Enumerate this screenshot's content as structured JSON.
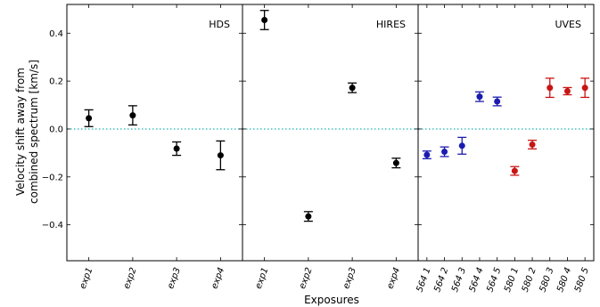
{
  "chart_data": {
    "type": "scatter",
    "ylabel": [
      "Velocity shift away from",
      "combined spectrum [km/s]"
    ],
    "xlabel": "Exposures",
    "ylim": [
      -0.55,
      0.52
    ],
    "yticks": [
      -0.4,
      -0.2,
      0.0,
      0.2,
      0.4
    ],
    "ytick_labels": [
      "−0.4",
      "−0.2",
      "0.0",
      "0.2",
      "0.4"
    ],
    "reference_line": 0.0,
    "colors": {
      "black": "#000000",
      "blue": "#1b1bb0",
      "red": "#c81414",
      "reference": "#1fb5b5"
    },
    "panels": [
      {
        "label": "HDS",
        "categories": [
          "exp1",
          "exp2",
          "exp3",
          "exp4"
        ],
        "points": [
          {
            "y": 0.045,
            "err": 0.035,
            "color": "black"
          },
          {
            "y": 0.057,
            "err": 0.04,
            "color": "black"
          },
          {
            "y": -0.082,
            "err": 0.028,
            "color": "black"
          },
          {
            "y": -0.11,
            "err": 0.06,
            "color": "black"
          }
        ]
      },
      {
        "label": "HIRES",
        "categories": [
          "exp1",
          "exp2",
          "exp3",
          "exp4"
        ],
        "points": [
          {
            "y": 0.455,
            "err": 0.04,
            "color": "black"
          },
          {
            "y": -0.365,
            "err": 0.02,
            "color": "black"
          },
          {
            "y": 0.172,
            "err": 0.02,
            "color": "black"
          },
          {
            "y": -0.142,
            "err": 0.02,
            "color": "black"
          }
        ]
      },
      {
        "label": "UVES",
        "categories": [
          "564 1",
          "564 2",
          "564 3",
          "564 4",
          "564 5",
          "580 1",
          "580 2",
          "580 3",
          "580 4",
          "580 5"
        ],
        "points": [
          {
            "y": -0.108,
            "err": 0.016,
            "color": "blue"
          },
          {
            "y": -0.095,
            "err": 0.02,
            "color": "blue"
          },
          {
            "y": -0.07,
            "err": 0.035,
            "color": "blue"
          },
          {
            "y": 0.135,
            "err": 0.02,
            "color": "blue"
          },
          {
            "y": 0.115,
            "err": 0.018,
            "color": "blue"
          },
          {
            "y": -0.175,
            "err": 0.018,
            "color": "red"
          },
          {
            "y": -0.065,
            "err": 0.018,
            "color": "red"
          },
          {
            "y": 0.172,
            "err": 0.04,
            "color": "red"
          },
          {
            "y": 0.158,
            "err": 0.015,
            "color": "red"
          },
          {
            "y": 0.172,
            "err": 0.04,
            "color": "red"
          }
        ]
      }
    ]
  }
}
